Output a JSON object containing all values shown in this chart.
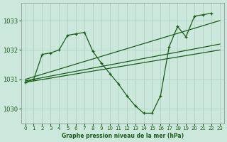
{
  "xlabel": "Graphe pression niveau de la mer (hPa)",
  "ylim": [
    1029.5,
    1033.6
  ],
  "xlim": [
    -0.5,
    23.5
  ],
  "yticks": [
    1030,
    1031,
    1032,
    1033
  ],
  "xticks": [
    0,
    1,
    2,
    3,
    4,
    5,
    6,
    7,
    8,
    9,
    10,
    11,
    12,
    13,
    14,
    15,
    16,
    17,
    18,
    19,
    20,
    21,
    22,
    23
  ],
  "bg_color": "#cce8dd",
  "grid_color": "#aaccbb",
  "line_color": "#1a5c1a",
  "line_color2": "#2d7a2d",
  "main_x": [
    0,
    1,
    2,
    3,
    4,
    5,
    6,
    7,
    8,
    9,
    10,
    11,
    12,
    13,
    14,
    15,
    16,
    17,
    18,
    19,
    20,
    21,
    22,
    23
  ],
  "main_y": [
    1030.9,
    1031.0,
    1031.85,
    1031.9,
    1032.0,
    1032.5,
    1032.55,
    1032.6,
    1031.95,
    1031.55,
    1031.2,
    1030.85,
    1030.45,
    1030.1,
    1029.85,
    1029.85,
    1030.45,
    1032.1,
    1032.8,
    1032.45,
    1033.15,
    1033.2,
    1033.25,
    null
  ],
  "trend1_x": [
    0,
    23
  ],
  "trend1_y": [
    1031.0,
    1033.0
  ],
  "trend2_x": [
    0,
    23
  ],
  "trend2_y": [
    1030.95,
    1032.2
  ],
  "trend3_x": [
    0,
    23
  ],
  "trend3_y": [
    1030.9,
    1032.0
  ]
}
